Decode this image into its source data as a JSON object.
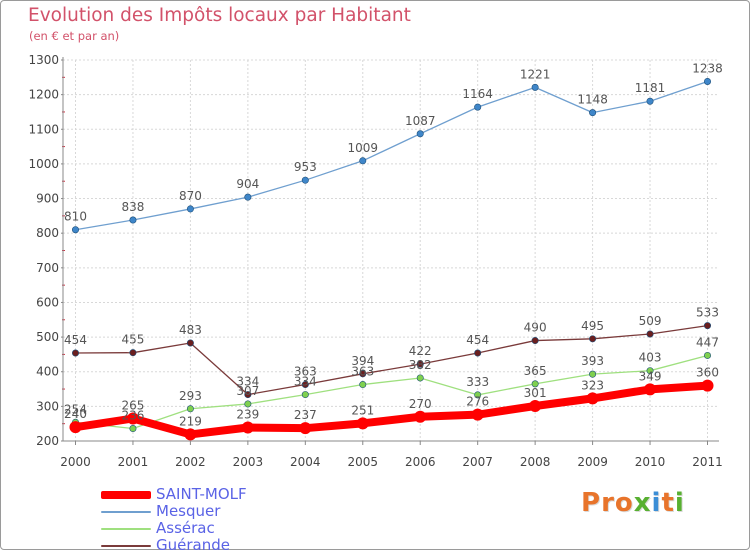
{
  "page": {
    "title": "Evolution des Impôts locaux par Habitant",
    "subtitle": "(en € et par an)",
    "logo_text": "Proxiti"
  },
  "colors": {
    "title": "#d2526a",
    "legend_text": "#5a63e6",
    "grid": "#d8d8d8",
    "axis": "#888888",
    "logo": [
      "#e8742b",
      "#e8742b",
      "#e8742b",
      "#58b031",
      "#3b8ed6",
      "#e8742b",
      "#58b031"
    ]
  },
  "chart_data": {
    "type": "line",
    "title": "Evolution des Impôts locaux par Habitant",
    "subtitle": "(en € et par an)",
    "xlabel": "",
    "ylabel": "",
    "grid": true,
    "ylim": [
      200,
      1300
    ],
    "yticks": [
      200,
      300,
      400,
      500,
      600,
      700,
      800,
      900,
      1000,
      1100,
      1200,
      1300
    ],
    "categories": [
      "2000",
      "2001",
      "2002",
      "2003",
      "2004",
      "2005",
      "2006",
      "2007",
      "2008",
      "2009",
      "2010",
      "2011"
    ],
    "legend_position": "bottom-left",
    "series": [
      {
        "name": "SAINT-MOLF",
        "color": "#ff0000",
        "marker_color": "#ff0000",
        "emphasis": "thick",
        "values": [
          240,
          265,
          219,
          239,
          237,
          251,
          270,
          276,
          301,
          323,
          349,
          360
        ],
        "labels": [
          "240",
          "265",
          "219",
          "239",
          "237",
          "251",
          "270",
          "276",
          "301",
          "323",
          "349",
          "360"
        ]
      },
      {
        "name": "Mesquer",
        "color": "#6f9fcf",
        "marker_color": "#3f86c9",
        "emphasis": "thin",
        "values": [
          810,
          838,
          870,
          904,
          953,
          1009,
          1087,
          1164,
          1221,
          1148,
          1181,
          1238
        ],
        "labels": [
          "810",
          "838",
          "870",
          "904",
          "953",
          "1009",
          "1087",
          "1164",
          "1221",
          "1148",
          "1181",
          "1238"
        ]
      },
      {
        "name": "Assérac",
        "color": "#9fe07f",
        "marker_color": "#7fd04f",
        "emphasis": "thin",
        "values": [
          254,
          236,
          293,
          307,
          334,
          363,
          382,
          333,
          365,
          393,
          403,
          447
        ],
        "labels": [
          "254",
          "236",
          "293",
          "307",
          "334",
          "363",
          "382",
          "333",
          "365",
          "393",
          "403",
          "447"
        ]
      },
      {
        "name": "Guérande",
        "color": "#7a3a3a",
        "marker_color": "#6b1f1f",
        "emphasis": "thin",
        "values": [
          454,
          455,
          483,
          334,
          363,
          394,
          422,
          454,
          490,
          495,
          509,
          533
        ],
        "labels": [
          "454",
          "455",
          "483",
          "334",
          "363",
          "394",
          "422",
          "454",
          "490",
          "495",
          "509",
          "533"
        ]
      }
    ]
  }
}
